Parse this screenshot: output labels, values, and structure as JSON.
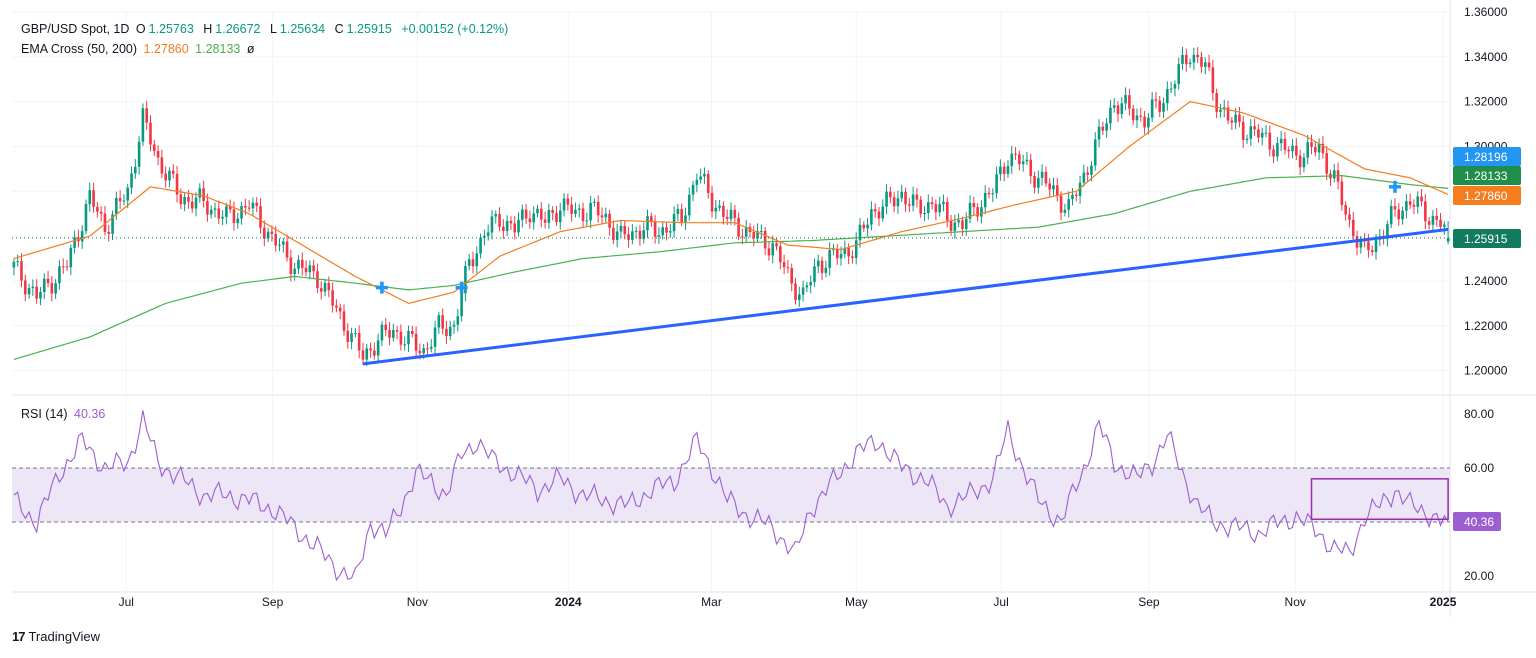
{
  "header": {
    "symbol": "GBP/USD Spot, 1D",
    "o_label": "O",
    "o_value": "1.25763",
    "h_label": "H",
    "h_value": "1.26672",
    "l_label": "L",
    "l_value": "1.25634",
    "c_label": "C",
    "c_value": "1.25915",
    "change": "+0.00152 (+0.12%)",
    "ema_label": "EMA Cross (50, 200)",
    "ema50_value": "1.27860",
    "ema200_value": "1.28133",
    "ema_extra": "ø",
    "rsi_label": "RSI (14)",
    "rsi_value": "40.36"
  },
  "footer": {
    "brand": "TradingView",
    "logo": "17"
  },
  "colors": {
    "up": "#089981",
    "down": "#f23645",
    "ema50": "#f57c1f",
    "ema200": "#4caf50",
    "trendline": "#2962ff",
    "rsi": "#9c5fd1",
    "rsi_band": "#ede6f7",
    "box": "#9c27b0",
    "tag_blue": "#2196f3",
    "tag_green": "#1e8e4a",
    "tag_orange": "#f57c1f",
    "tag_price": "#127a5e"
  },
  "chart_data": {
    "type": "candlestick",
    "title": "GBP/USD Spot, 1D",
    "x_tick_labels": [
      "Jul",
      "Sep",
      "Nov",
      "2024",
      "Mar",
      "May",
      "Jul",
      "Sep",
      "Nov",
      "2025"
    ],
    "price_axis": {
      "ticks": [
        "1.20000",
        "1.22000",
        "1.24000",
        "1.26000",
        "1.28000",
        "1.30000",
        "1.32000",
        "1.34000",
        "1.36000"
      ],
      "range": [
        1.19,
        1.36
      ]
    },
    "rsi_axis": {
      "ticks": [
        "20.00",
        "40.00",
        "60.00",
        "80.00"
      ],
      "range": [
        14,
        86
      ]
    },
    "price_tags": [
      {
        "label": "1.28196",
        "value": 1.28196,
        "kind": "blue"
      },
      {
        "label": "1.28133",
        "value": 1.28133,
        "kind": "ema200"
      },
      {
        "label": "1.27860",
        "value": 1.2786,
        "kind": "ema50"
      },
      {
        "label": "1.25915",
        "value": 1.25915,
        "kind": "last"
      }
    ],
    "rsi_tag": {
      "label": "40.36",
      "value": 40.36
    },
    "close_waypoints": [
      [
        0,
        1.246
      ],
      [
        6,
        1.233
      ],
      [
        14,
        1.247
      ],
      [
        20,
        1.277
      ],
      [
        24,
        1.264
      ],
      [
        30,
        1.28
      ],
      [
        34,
        1.312
      ],
      [
        38,
        1.294
      ],
      [
        44,
        1.277
      ],
      [
        50,
        1.275
      ],
      [
        56,
        1.268
      ],
      [
        62,
        1.274
      ],
      [
        68,
        1.259
      ],
      [
        74,
        1.247
      ],
      [
        80,
        1.242
      ],
      [
        86,
        1.224
      ],
      [
        92,
        1.206
      ],
      [
        96,
        1.214
      ],
      [
        100,
        1.218
      ],
      [
        104,
        1.213
      ],
      [
        108,
        1.209
      ],
      [
        112,
        1.219
      ],
      [
        116,
        1.22
      ],
      [
        120,
        1.248
      ],
      [
        124,
        1.261
      ],
      [
        128,
        1.268
      ],
      [
        132,
        1.263
      ],
      [
        136,
        1.272
      ],
      [
        140,
        1.266
      ],
      [
        144,
        1.274
      ],
      [
        148,
        1.27
      ],
      [
        152,
        1.272
      ],
      [
        156,
        1.268
      ],
      [
        160,
        1.259
      ],
      [
        166,
        1.264
      ],
      [
        170,
        1.262
      ],
      [
        176,
        1.268
      ],
      [
        180,
        1.288
      ],
      [
        184,
        1.276
      ],
      [
        188,
        1.268
      ],
      [
        194,
        1.261
      ],
      [
        200,
        1.256
      ],
      [
        204,
        1.242
      ],
      [
        208,
        1.233
      ],
      [
        212,
        1.248
      ],
      [
        218,
        1.252
      ],
      [
        222,
        1.256
      ],
      [
        226,
        1.271
      ],
      [
        230,
        1.274
      ],
      [
        234,
        1.279
      ],
      [
        238,
        1.272
      ],
      [
        242,
        1.275
      ],
      [
        246,
        1.268
      ],
      [
        250,
        1.265
      ],
      [
        254,
        1.274
      ],
      [
        258,
        1.28
      ],
      [
        262,
        1.296
      ],
      [
        266,
        1.292
      ],
      [
        270,
        1.286
      ],
      [
        274,
        1.28
      ],
      [
        278,
        1.272
      ],
      [
        282,
        1.287
      ],
      [
        286,
        1.304
      ],
      [
        290,
        1.32
      ],
      [
        294,
        1.316
      ],
      [
        298,
        1.312
      ],
      [
        302,
        1.319
      ],
      [
        306,
        1.33
      ],
      [
        310,
        1.342
      ],
      [
        314,
        1.336
      ],
      [
        316,
        1.324
      ],
      [
        320,
        1.312
      ],
      [
        324,
        1.308
      ],
      [
        328,
        1.305
      ],
      [
        332,
        1.301
      ],
      [
        336,
        1.298
      ],
      [
        340,
        1.296
      ],
      [
        344,
        1.3
      ],
      [
        348,
        1.285
      ],
      [
        352,
        1.266
      ],
      [
        356,
        1.252
      ],
      [
        360,
        1.26
      ],
      [
        364,
        1.27
      ],
      [
        368,
        1.276
      ],
      [
        372,
        1.27
      ],
      [
        376,
        1.266
      ],
      [
        378,
        1.2592
      ]
    ],
    "ema50": [
      [
        0,
        1.25
      ],
      [
        20,
        1.26
      ],
      [
        36,
        1.282
      ],
      [
        50,
        1.278
      ],
      [
        62,
        1.27
      ],
      [
        74,
        1.258
      ],
      [
        90,
        1.242
      ],
      [
        104,
        1.23
      ],
      [
        116,
        1.235
      ],
      [
        128,
        1.251
      ],
      [
        144,
        1.262
      ],
      [
        160,
        1.267
      ],
      [
        176,
        1.266
      ],
      [
        190,
        1.266
      ],
      [
        204,
        1.256
      ],
      [
        218,
        1.254
      ],
      [
        234,
        1.262
      ],
      [
        250,
        1.268
      ],
      [
        264,
        1.274
      ],
      [
        280,
        1.28
      ],
      [
        294,
        1.3
      ],
      [
        310,
        1.32
      ],
      [
        324,
        1.315
      ],
      [
        340,
        1.305
      ],
      [
        356,
        1.29
      ],
      [
        368,
        1.286
      ],
      [
        378,
        1.2786
      ]
    ],
    "ema200": [
      [
        0,
        1.205
      ],
      [
        20,
        1.215
      ],
      [
        40,
        1.23
      ],
      [
        60,
        1.239
      ],
      [
        74,
        1.242
      ],
      [
        90,
        1.239
      ],
      [
        104,
        1.236
      ],
      [
        116,
        1.238
      ],
      [
        132,
        1.244
      ],
      [
        150,
        1.25
      ],
      [
        170,
        1.253
      ],
      [
        190,
        1.257
      ],
      [
        210,
        1.258
      ],
      [
        230,
        1.26
      ],
      [
        250,
        1.262
      ],
      [
        270,
        1.264
      ],
      [
        290,
        1.27
      ],
      [
        310,
        1.28
      ],
      [
        330,
        1.286
      ],
      [
        350,
        1.287
      ],
      [
        368,
        1.283
      ],
      [
        378,
        1.2813
      ]
    ],
    "trendline": [
      [
        92,
        1.203
      ],
      [
        378,
        1.263
      ]
    ],
    "cross_markers": [
      [
        97,
        1.237
      ],
      [
        118,
        1.237
      ],
      [
        364,
        1.282
      ]
    ],
    "rsi_values": [
      [
        0,
        48
      ],
      [
        6,
        40
      ],
      [
        12,
        58
      ],
      [
        18,
        70
      ],
      [
        24,
        60
      ],
      [
        30,
        62
      ],
      [
        34,
        78
      ],
      [
        38,
        62
      ],
      [
        44,
        56
      ],
      [
        50,
        50
      ],
      [
        56,
        50
      ],
      [
        62,
        48
      ],
      [
        68,
        45
      ],
      [
        74,
        38
      ],
      [
        80,
        30
      ],
      [
        86,
        22
      ],
      [
        90,
        18
      ],
      [
        94,
        40
      ],
      [
        98,
        35
      ],
      [
        102,
        46
      ],
      [
        106,
        58
      ],
      [
        110,
        55
      ],
      [
        114,
        50
      ],
      [
        118,
        65
      ],
      [
        122,
        70
      ],
      [
        126,
        63
      ],
      [
        132,
        58
      ],
      [
        138,
        52
      ],
      [
        144,
        56
      ],
      [
        150,
        50
      ],
      [
        156,
        48
      ],
      [
        162,
        46
      ],
      [
        168,
        52
      ],
      [
        174,
        55
      ],
      [
        180,
        70
      ],
      [
        184,
        60
      ],
      [
        188,
        48
      ],
      [
        194,
        42
      ],
      [
        200,
        38
      ],
      [
        206,
        28
      ],
      [
        210,
        45
      ],
      [
        216,
        55
      ],
      [
        222,
        66
      ],
      [
        228,
        70
      ],
      [
        234,
        60
      ],
      [
        240,
        56
      ],
      [
        246,
        46
      ],
      [
        252,
        50
      ],
      [
        258,
        56
      ],
      [
        262,
        74
      ],
      [
        266,
        60
      ],
      [
        270,
        48
      ],
      [
        276,
        40
      ],
      [
        282,
        60
      ],
      [
        286,
        76
      ],
      [
        290,
        62
      ],
      [
        296,
        56
      ],
      [
        300,
        62
      ],
      [
        304,
        72
      ],
      [
        308,
        58
      ],
      [
        312,
        46
      ],
      [
        316,
        40
      ],
      [
        322,
        38
      ],
      [
        328,
        36
      ],
      [
        334,
        40
      ],
      [
        338,
        42
      ],
      [
        344,
        36
      ],
      [
        348,
        30
      ],
      [
        352,
        28
      ],
      [
        356,
        42
      ],
      [
        360,
        46
      ],
      [
        364,
        52
      ],
      [
        368,
        46
      ],
      [
        372,
        44
      ],
      [
        376,
        40
      ],
      [
        378,
        40.36
      ]
    ],
    "rsi_box": {
      "x": [
        342,
        378
      ],
      "y": [
        41,
        56
      ]
    },
    "rsi_levels": [
      40,
      60
    ]
  }
}
